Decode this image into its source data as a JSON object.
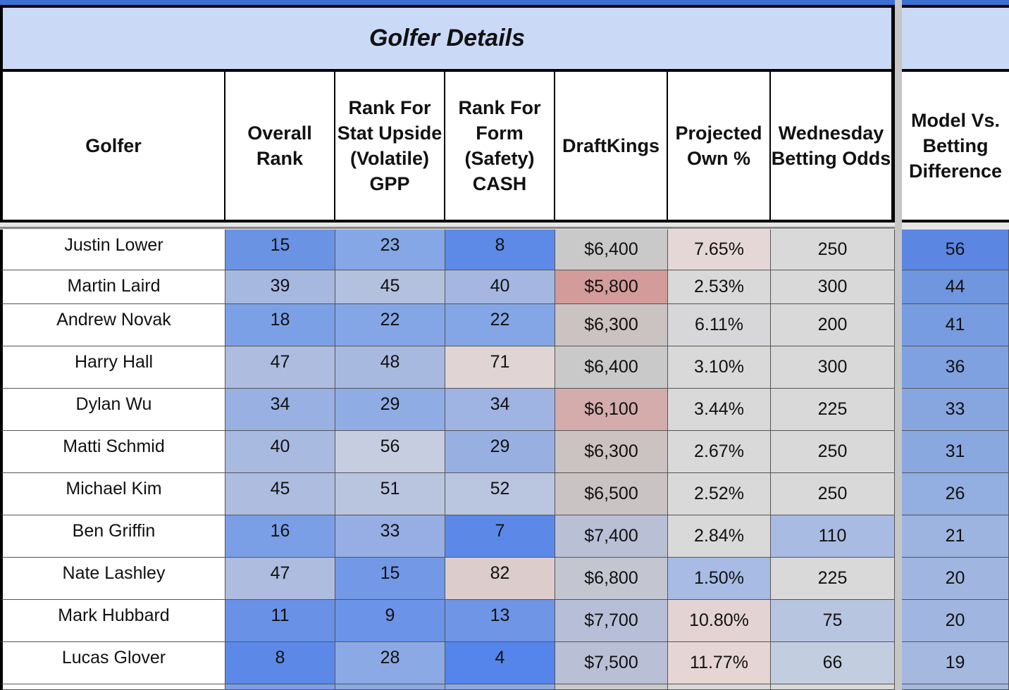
{
  "title": "Golfer Details",
  "headers": {
    "golfer": "Golfer",
    "overall_rank": "Overall Rank",
    "rank_stat": "Rank For Stat Upside (Volatile) GPP",
    "rank_form": "Rank For Form (Safety) CASH",
    "draftkings": "DraftKings",
    "projected_own": "Projected Own %",
    "betting_odds": "Wednesday Betting Odds",
    "model_diff": "Model Vs. Betting Difference"
  },
  "rows": [
    {
      "golfer": "Justin Lower",
      "overall_rank": "15",
      "rank_stat": "23",
      "rank_form": "8",
      "draftkings": "$6,400",
      "projected_own": "7.65%",
      "betting_odds": "250",
      "model_diff": "56"
    },
    {
      "golfer": "Martin Laird",
      "overall_rank": "39",
      "rank_stat": "45",
      "rank_form": "40",
      "draftkings": "$5,800",
      "projected_own": "2.53%",
      "betting_odds": "300",
      "model_diff": "44"
    },
    {
      "golfer": "Andrew Novak",
      "overall_rank": "18",
      "rank_stat": "22",
      "rank_form": "22",
      "draftkings": "$6,300",
      "projected_own": "6.11%",
      "betting_odds": "200",
      "model_diff": "41"
    },
    {
      "golfer": "Harry Hall",
      "overall_rank": "47",
      "rank_stat": "48",
      "rank_form": "71",
      "draftkings": "$6,400",
      "projected_own": "3.10%",
      "betting_odds": "300",
      "model_diff": "36"
    },
    {
      "golfer": "Dylan Wu",
      "overall_rank": "34",
      "rank_stat": "29",
      "rank_form": "34",
      "draftkings": "$6,100",
      "projected_own": "3.44%",
      "betting_odds": "225",
      "model_diff": "33"
    },
    {
      "golfer": "Matti Schmid",
      "overall_rank": "40",
      "rank_stat": "56",
      "rank_form": "29",
      "draftkings": "$6,300",
      "projected_own": "2.67%",
      "betting_odds": "250",
      "model_diff": "31"
    },
    {
      "golfer": "Michael Kim",
      "overall_rank": "45",
      "rank_stat": "51",
      "rank_form": "52",
      "draftkings": "$6,500",
      "projected_own": "2.52%",
      "betting_odds": "250",
      "model_diff": "26"
    },
    {
      "golfer": "Ben Griffin",
      "overall_rank": "16",
      "rank_stat": "33",
      "rank_form": "7",
      "draftkings": "$7,400",
      "projected_own": "2.84%",
      "betting_odds": "110",
      "model_diff": "21"
    },
    {
      "golfer": "Nate Lashley",
      "overall_rank": "47",
      "rank_stat": "15",
      "rank_form": "82",
      "draftkings": "$6,800",
      "projected_own": "1.50%",
      "betting_odds": "225",
      "model_diff": "20"
    },
    {
      "golfer": "Mark Hubbard",
      "overall_rank": "11",
      "rank_stat": "9",
      "rank_form": "13",
      "draftkings": "$7,700",
      "projected_own": "10.80%",
      "betting_odds": "75",
      "model_diff": "20"
    },
    {
      "golfer": "Lucas Glover",
      "overall_rank": "8",
      "rank_stat": "28",
      "rank_form": "4",
      "draftkings": "$7,500",
      "projected_own": "11.77%",
      "betting_odds": "66",
      "model_diff": "19"
    }
  ],
  "cell_colors": [
    [
      "#ffffff",
      "#6a93e4",
      "#86a7e6",
      "#5d8ae7",
      "#c9c9c9",
      "#e6d7d7",
      "#d9d9d9",
      "#5b86e2"
    ],
    [
      "#ffffff",
      "#a6b8e0",
      "#b3c0de",
      "#a5b7e0",
      "#d49b9b",
      "#d9d9d9",
      "#d9d9d9",
      "#6f96de"
    ],
    [
      "#ffffff",
      "#7ba0e6",
      "#84a6e6",
      "#84a6e6",
      "#cbc2c2",
      "#d7d7d9",
      "#d9d9d9",
      "#779ce0"
    ],
    [
      "#ffffff",
      "#adbcdf",
      "#a8b9e0",
      "#e0d4d4",
      "#c9c9c9",
      "#d9d9d9",
      "#d9d9d9",
      "#80a1e0"
    ],
    [
      "#ffffff",
      "#98b0e2",
      "#90ace4",
      "#9fb4e2",
      "#d5acac",
      "#d9d9d9",
      "#d9d9d9",
      "#87a6e0"
    ],
    [
      "#ffffff",
      "#a9bae0",
      "#c6cde0",
      "#98afe2",
      "#cbc2c2",
      "#d9d9d9",
      "#d9d9d9",
      "#8aa8e0"
    ],
    [
      "#ffffff",
      "#adbcdf",
      "#b9c4df",
      "#bac5df",
      "#c9c3c3",
      "#d9d9d9",
      "#d9d9d9",
      "#93aee0"
    ],
    [
      "#ffffff",
      "#7b9fe6",
      "#96aee3",
      "#5c89e8",
      "#b9c0d6",
      "#d9d9d9",
      "#a8bbe2",
      "#9db4e0"
    ],
    [
      "#ffffff",
      "#adbcdf",
      "#7399e6",
      "#dccccc",
      "#c3c6d0",
      "#a8bbe4",
      "#d9d9d9",
      "#a0b6e0"
    ],
    [
      "#ffffff",
      "#6991e6",
      "#6b93e7",
      "#6e95e6",
      "#b7bfd8",
      "#e3d3d3",
      "#b8c5e0",
      "#a0b6e0"
    ],
    [
      "#ffffff",
      "#5c89e8",
      "#8ba9e5",
      "#5585ea",
      "#b9c0d6",
      "#e6d5d5",
      "#c2cde0",
      "#a4b8e0"
    ]
  ]
}
